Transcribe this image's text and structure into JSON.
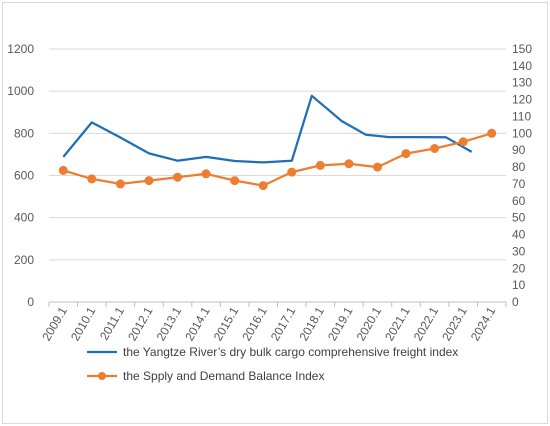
{
  "chart_data": {
    "type": "line",
    "categories": [
      "2009.1",
      "2010.1",
      "2011.1",
      "2012.1",
      "2013.1",
      "2014.1",
      "2015.1",
      "2016.1",
      "2017.1",
      "2018.1",
      "2019.1",
      "2020.1",
      "2021.1",
      "2022.1",
      "2023.1",
      "2024.1"
    ],
    "series": [
      {
        "name": "the Yangtze River’s dry bulk cargo comprehensive freight index",
        "axis": "left",
        "color": "#1f6fb4",
        "markers": false,
        "x": [
          0,
          1,
          2,
          3,
          4,
          5,
          6,
          7,
          8,
          8.7,
          9.75,
          10.6,
          11.4,
          12.5,
          13.4,
          14.3
        ],
        "values": [
          688,
          852,
          780,
          705,
          670,
          688,
          669,
          662,
          670,
          978,
          858,
          793,
          782,
          782,
          781,
          712
        ]
      },
      {
        "name": "the Spply and Demand Balance Index",
        "axis": "right",
        "color": "#ed7d31",
        "markers": true,
        "x": [
          0,
          1,
          2,
          3,
          4,
          5,
          6,
          7,
          8,
          9,
          10,
          11,
          12,
          13,
          14,
          15
        ],
        "values": [
          78,
          73,
          70,
          72,
          74,
          76,
          72,
          69,
          77,
          81,
          82,
          80,
          88,
          91,
          95,
          100
        ]
      }
    ],
    "yleft": {
      "min": 0,
      "max": 1200,
      "ticks": [
        0,
        200,
        400,
        600,
        800,
        1000,
        1200
      ]
    },
    "yright": {
      "min": 0,
      "max": 150,
      "ticks": [
        0,
        10,
        20,
        30,
        40,
        50,
        60,
        70,
        80,
        90,
        100,
        110,
        120,
        130,
        140,
        150
      ]
    },
    "grid": true,
    "legend_position": "bottom"
  }
}
